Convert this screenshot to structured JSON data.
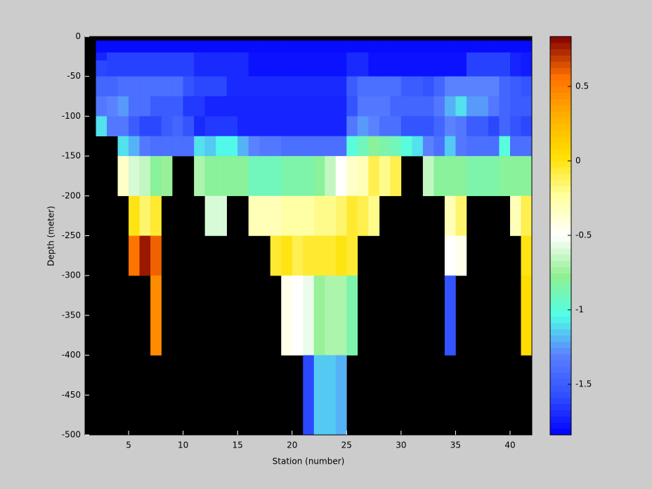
{
  "chart_data": {
    "type": "heatmap",
    "xlabel": "Station (number)",
    "ylabel": "Depth (meter)",
    "x": [
      2,
      3,
      4,
      5,
      6,
      7,
      8,
      9,
      10,
      11,
      12,
      13,
      14,
      15,
      16,
      17,
      18,
      19,
      20,
      21,
      22,
      23,
      24,
      25,
      26,
      27,
      28,
      29,
      30,
      31,
      32,
      33,
      34,
      35,
      36,
      37,
      38,
      39,
      40,
      41,
      42
    ],
    "y": [
      -5,
      -20,
      -30,
      -50,
      -75,
      -100,
      -125,
      -150,
      -200,
      -250,
      -300,
      -400,
      -500
    ],
    "values": [
      [
        -1.8,
        -1.8,
        -1.8,
        -1.8,
        -1.8,
        -1.8,
        -1.8,
        -1.8,
        -1.8,
        -1.8,
        -1.8,
        -1.8,
        -1.8,
        -1.8,
        -1.8,
        -1.8,
        -1.8,
        -1.8,
        -1.8,
        -1.8,
        -1.8,
        -1.8,
        -1.8,
        -1.8,
        -1.8,
        -1.8,
        -1.8,
        -1.8,
        -1.8,
        -1.8,
        -1.8,
        -1.8,
        -1.8,
        -1.8,
        -1.8,
        -1.8,
        -1.8,
        -1.8,
        -1.8,
        -1.8
      ],
      [
        -1.72,
        -1.62,
        -1.62,
        -1.62,
        -1.62,
        -1.62,
        -1.62,
        -1.62,
        -1.62,
        -1.7,
        -1.7,
        -1.7,
        -1.7,
        -1.7,
        -1.78,
        -1.78,
        -1.78,
        -1.78,
        -1.78,
        -1.78,
        -1.78,
        -1.78,
        -1.78,
        -1.7,
        -1.7,
        -1.78,
        -1.78,
        -1.78,
        -1.78,
        -1.78,
        -1.78,
        -1.78,
        -1.78,
        -1.78,
        -1.62,
        -1.62,
        -1.62,
        -1.62,
        -1.72,
        -1.75
      ],
      [
        -1.6,
        -1.62,
        -1.62,
        -1.62,
        -1.62,
        -1.62,
        -1.62,
        -1.62,
        -1.62,
        -1.7,
        -1.7,
        -1.7,
        -1.7,
        -1.7,
        -1.78,
        -1.78,
        -1.78,
        -1.78,
        -1.78,
        -1.78,
        -1.78,
        -1.78,
        -1.78,
        -1.7,
        -1.7,
        -1.78,
        -1.78,
        -1.78,
        -1.78,
        -1.78,
        -1.78,
        -1.78,
        -1.78,
        -1.78,
        -1.62,
        -1.62,
        -1.62,
        -1.62,
        -1.72,
        -1.75
      ],
      [
        -1.45,
        -1.45,
        -1.4,
        -1.4,
        -1.4,
        -1.4,
        -1.4,
        -1.4,
        -1.55,
        -1.6,
        -1.6,
        -1.6,
        -1.7,
        -1.7,
        -1.7,
        -1.7,
        -1.7,
        -1.7,
        -1.7,
        -1.7,
        -1.7,
        -1.7,
        -1.7,
        -1.5,
        -1.4,
        -1.4,
        -1.4,
        -1.4,
        -1.5,
        -1.5,
        -1.55,
        -1.45,
        -1.3,
        -1.3,
        -1.3,
        -1.3,
        -1.3,
        -1.45,
        -1.5,
        -1.55
      ],
      [
        -1.35,
        -1.3,
        -1.25,
        -1.4,
        -1.4,
        -1.5,
        -1.5,
        -1.5,
        -1.65,
        -1.65,
        -1.72,
        -1.72,
        -1.72,
        -1.72,
        -1.72,
        -1.72,
        -1.72,
        -1.72,
        -1.72,
        -1.72,
        -1.72,
        -1.72,
        -1.72,
        -1.55,
        -1.35,
        -1.35,
        -1.35,
        -1.45,
        -1.45,
        -1.45,
        -1.45,
        -1.35,
        -1.2,
        -1.1,
        -1.25,
        -1.25,
        -1.35,
        -1.45,
        -1.5,
        -1.5
      ],
      [
        -1.1,
        -1.35,
        -1.35,
        -1.5,
        -1.6,
        -1.6,
        -1.5,
        -1.45,
        -1.55,
        -1.7,
        -1.65,
        -1.65,
        -1.65,
        -1.72,
        -1.72,
        -1.72,
        -1.72,
        -1.72,
        -1.72,
        -1.72,
        -1.72,
        -1.72,
        -1.72,
        -1.35,
        -1.25,
        -1.3,
        -1.4,
        -1.4,
        -1.55,
        -1.55,
        -1.55,
        -1.45,
        -1.3,
        -1.35,
        -1.5,
        -1.5,
        -1.6,
        -1.45,
        -1.55,
        -1.6
      ],
      [
        null,
        null,
        -1.1,
        -1.2,
        -1.35,
        -1.4,
        -1.4,
        -1.4,
        -1.4,
        -1.1,
        -1.15,
        -1.05,
        -1.05,
        -1.2,
        -1.3,
        -1.35,
        -1.35,
        -1.4,
        -1.4,
        -1.4,
        -1.4,
        -1.4,
        -1.4,
        -1.0,
        -0.9,
        -0.8,
        -0.85,
        -0.9,
        -1.0,
        -1.1,
        -1.3,
        -1.4,
        -1.15,
        -1.35,
        -1.4,
        -1.4,
        -1.4,
        -1.0,
        -1.4,
        -1.4
      ],
      [
        null,
        null,
        -0.35,
        -0.6,
        -0.65,
        -0.8,
        -0.75,
        null,
        null,
        -0.7,
        -0.8,
        -0.8,
        -0.8,
        -0.8,
        -0.9,
        -0.9,
        -0.9,
        -0.85,
        -0.85,
        -0.85,
        -0.8,
        -0.65,
        -0.5,
        -0.35,
        -0.3,
        -0.1,
        -0.2,
        -0.1,
        null,
        null,
        -0.65,
        -0.8,
        -0.8,
        -0.8,
        -0.85,
        -0.85,
        -0.85,
        -0.8,
        -0.8,
        -0.8
      ],
      [
        null,
        null,
        null,
        0.0,
        -0.15,
        -0.05,
        null,
        null,
        null,
        null,
        -0.6,
        -0.6,
        null,
        null,
        -0.3,
        -0.3,
        -0.3,
        -0.25,
        -0.25,
        -0.25,
        -0.2,
        -0.2,
        -0.15,
        -0.05,
        -0.1,
        -0.2,
        null,
        null,
        null,
        null,
        null,
        null,
        -0.3,
        -0.15,
        null,
        null,
        null,
        null,
        -0.3,
        -0.1
      ],
      [
        null,
        null,
        null,
        0.55,
        0.78,
        0.6,
        null,
        null,
        null,
        null,
        null,
        null,
        null,
        null,
        null,
        null,
        -0.05,
        0.0,
        -0.1,
        -0.05,
        -0.05,
        -0.05,
        0.0,
        -0.05,
        null,
        null,
        null,
        null,
        null,
        null,
        null,
        null,
        -0.5,
        -0.45,
        null,
        null,
        null,
        null,
        null,
        0.0
      ],
      [
        null,
        null,
        null,
        null,
        null,
        0.45,
        null,
        null,
        null,
        null,
        null,
        null,
        null,
        null,
        null,
        null,
        null,
        -0.45,
        -0.5,
        -0.55,
        -0.75,
        -0.7,
        -0.7,
        -0.85,
        null,
        null,
        null,
        null,
        null,
        null,
        null,
        null,
        -1.55,
        null,
        null,
        null,
        null,
        null,
        null,
        0.05
      ],
      [
        null,
        null,
        null,
        null,
        null,
        null,
        null,
        null,
        null,
        null,
        null,
        null,
        null,
        null,
        null,
        null,
        null,
        null,
        null,
        -1.6,
        -1.15,
        -1.15,
        -1.2,
        null,
        null,
        null,
        null,
        null,
        null,
        null,
        null,
        null,
        null,
        null,
        null,
        null,
        null,
        null,
        null,
        null
      ]
    ],
    "xlim": [
      1,
      42
    ],
    "ylim": [
      -500,
      0
    ],
    "xticks": [
      5,
      10,
      15,
      20,
      25,
      30,
      35,
      40
    ],
    "yticks": [
      0,
      -50,
      -100,
      -150,
      -200,
      -250,
      -300,
      -350,
      -400,
      -450,
      -500
    ],
    "clim": [
      -1.84,
      0.835
    ],
    "cticks": [
      -1.5,
      -1,
      -0.5,
      0,
      0.5
    ],
    "colormap": [
      "#0000ff",
      "#3050ff",
      "#5a80ff",
      "#50ffe8",
      "#90f090",
      "#ffffff",
      "#ffffa0",
      "#ffe000",
      "#ffb000",
      "#ff7000",
      "#800000"
    ],
    "nan_color": "#000000"
  }
}
